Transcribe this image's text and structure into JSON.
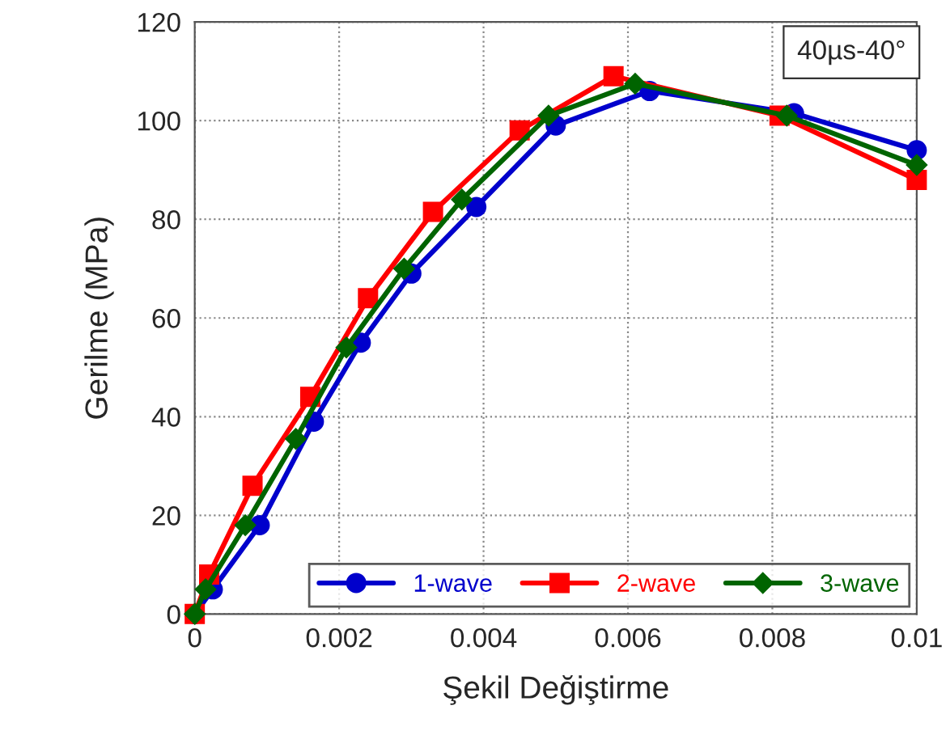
{
  "chart_data": {
    "type": "line",
    "xlabel": "Şekil Değiştirme",
    "ylabel": "Gerilme (MPa)",
    "xlim": [
      0,
      0.01
    ],
    "ylim": [
      0,
      120
    ],
    "xticks": [
      0,
      0.002,
      0.004,
      0.006,
      0.008,
      0.01
    ],
    "yticks": [
      0,
      20,
      40,
      60,
      80,
      100,
      120
    ],
    "grid": true,
    "legend": "bottom right",
    "line_style": "solid",
    "annotations": [
      "40µs-40°"
    ],
    "series": [
      {
        "name": "1-wave",
        "color": "#0000cc",
        "marker": "circle",
        "x": [
          0,
          0.00025,
          0.0009,
          0.00165,
          0.0023,
          0.003,
          0.0039,
          0.005,
          0.0063,
          0.0083,
          0.01
        ],
        "values": [
          0,
          5,
          18,
          39,
          55,
          69,
          82.5,
          99,
          106,
          101.5,
          94
        ]
      },
      {
        "name": "2-wave",
        "color": "#ff0000",
        "marker": "square",
        "x": [
          0,
          0.0002,
          0.0008,
          0.0016,
          0.0024,
          0.0033,
          0.0045,
          0.0058,
          0.0081,
          0.01
        ],
        "values": [
          0,
          8,
          26,
          44,
          64,
          81.5,
          98,
          109,
          101,
          88
        ]
      },
      {
        "name": "3-wave",
        "color": "#006400",
        "marker": "diamond",
        "x": [
          0,
          0.00015,
          0.0007,
          0.0014,
          0.0021,
          0.0029,
          0.0037,
          0.0049,
          0.0061,
          0.0082,
          0.01
        ],
        "values": [
          0,
          5,
          18,
          35.5,
          54,
          70,
          84,
          101,
          107.5,
          101,
          91
        ]
      }
    ]
  }
}
